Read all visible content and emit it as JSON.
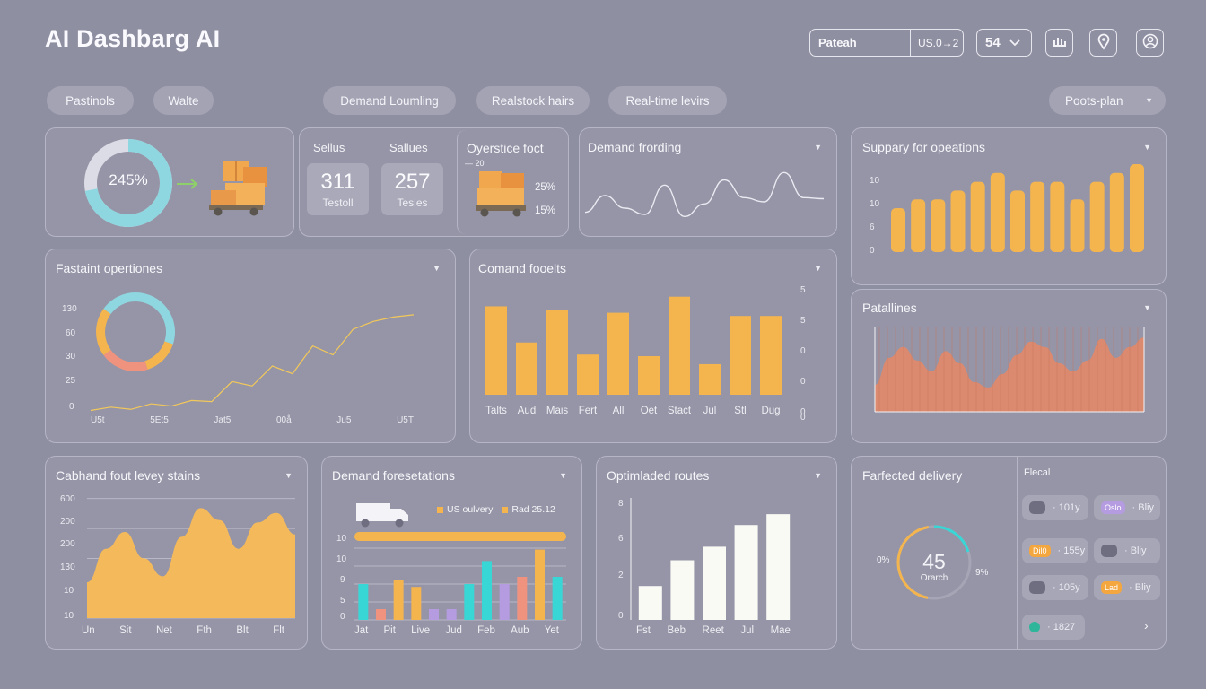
{
  "header": {
    "title": "AI Dashbarg AI",
    "search_value": "Pateah",
    "search_suffix": "US.0→2",
    "select_value": "54",
    "icons": [
      "chart-icon",
      "location-pin-icon",
      "profile-icon"
    ]
  },
  "filters": {
    "items": [
      "Pastinols",
      "Walte",
      "Demand Loumling",
      "Realstock hairs",
      "Real-time levirs"
    ],
    "dropdown": "Poots-plan"
  },
  "colors": {
    "background": "#8f8fa2",
    "accent_orange": "#f4b54f",
    "accent_cyan": "#8fd7e0",
    "accent_salmon": "#f0937e",
    "accent_teal": "#39d6d6",
    "accent_purple": "#b59be0",
    "accent_white": "#fafaf5"
  },
  "card1": {
    "donut_label": "245%",
    "donut_value": 0.72,
    "icon": "delivery-boxes-icon"
  },
  "card2": {
    "stats": [
      {
        "head": "Sellus",
        "value": "311",
        "label": "Testoll"
      },
      {
        "head": "Sallues",
        "value": "257",
        "label": "Tesles"
      }
    ]
  },
  "card3": {
    "title": "Oyerstice foct",
    "small": "— 20",
    "pct1": "25%",
    "pct2": "15%",
    "icon": "delivery-truck-boxes-icon"
  },
  "card4": {
    "title": "Demand frording",
    "line": [
      14,
      30,
      18,
      12,
      40,
      10,
      22,
      45,
      28,
      24,
      52,
      28,
      27
    ]
  },
  "card5": {
    "title": "Suppary for opeations",
    "yticks": [
      "10",
      "10",
      "6",
      "0"
    ],
    "values": [
      5,
      6,
      6,
      7,
      8,
      9,
      7,
      8,
      8,
      6,
      8,
      9,
      10
    ]
  },
  "card6": {
    "title": "Fastaint opertiones",
    "yticks": [
      "130",
      "60",
      "30",
      "25",
      "0"
    ],
    "xticks": [
      "U5t",
      "5Et5",
      "Jat5",
      "00å",
      "Ju5",
      "U5T"
    ],
    "donut": [
      0.3,
      0.15,
      0.2,
      0.2,
      0.15
    ],
    "line": [
      2,
      5,
      3,
      8,
      6,
      11,
      10,
      28,
      24,
      42,
      35,
      60,
      52,
      75,
      82,
      86,
      88
    ]
  },
  "card7": {
    "title": "Comand fooelts",
    "categories": [
      "Talts",
      "Aud",
      "Mais",
      "Fert",
      "All",
      "Oet",
      "Stact",
      "Jul",
      "Stl",
      "Dug"
    ],
    "values": [
      11,
      6.5,
      10.5,
      5,
      10.2,
      4.8,
      12.2,
      3.8,
      9.8,
      9.8
    ],
    "yticks": [
      "5",
      "5",
      "0",
      "0",
      "0",
      "0"
    ]
  },
  "card8": {
    "title": "Patallines",
    "wave": [
      20,
      40,
      48,
      38,
      30,
      45,
      36,
      22,
      18,
      28,
      42,
      52,
      48,
      36,
      30,
      38,
      54,
      40,
      48,
      55
    ]
  },
  "card9": {
    "title": "Cabhand fout levey stains",
    "yticks": [
      "600",
      "200",
      "200",
      "130",
      "10",
      "10"
    ],
    "xticks": [
      "Un",
      "Sit",
      "Net",
      "Fth",
      "Blt",
      "Flt"
    ],
    "area": [
      30,
      58,
      72,
      50,
      35,
      68,
      92,
      82,
      58,
      80,
      88,
      70
    ]
  },
  "card10": {
    "title": "Demand foresetations",
    "legend": [
      {
        "label": "US oulvery",
        "color": "#f4b54f"
      },
      {
        "label": "Rad 25.12",
        "color": "#f4b54f"
      }
    ],
    "progress": 1.0,
    "yticks": [
      "10",
      "10",
      "9",
      "5",
      "0"
    ],
    "xticks": [
      "Jat",
      "Pit",
      "Live",
      "Jud",
      "Feb",
      "Aub",
      "Yet"
    ],
    "icon": "truck-icon",
    "bars": [
      {
        "c": "#39d6d6",
        "v": 5
      },
      {
        "c": "#f0937e",
        "v": 1.5
      },
      {
        "c": "#f4b54f",
        "v": 5.5
      },
      {
        "c": "#f4b54f",
        "v": 4.6
      },
      {
        "c": "#b59be0",
        "v": 1.5
      },
      {
        "c": "#b59be0",
        "v": 1.5
      },
      {
        "c": "#39d6d6",
        "v": 5
      },
      {
        "c": "#39d6d6",
        "v": 8.2
      },
      {
        "c": "#b59be0",
        "v": 5
      },
      {
        "c": "#f0937e",
        "v": 6
      },
      {
        "c": "#f4b54f",
        "v": 9.8
      },
      {
        "c": "#39d6d6",
        "v": 6
      }
    ]
  },
  "card11": {
    "title": "Optimladed routes",
    "yticks": [
      "8",
      "6",
      "2",
      "0"
    ],
    "xticks": [
      "Fst",
      "Beb",
      "Reet",
      "Jul",
      "Mae"
    ],
    "values": [
      2.5,
      4.4,
      5.4,
      7,
      7.8
    ]
  },
  "card12": {
    "title": "Farfected delivery",
    "gauge_value": "45",
    "gauge_label": "Orarch",
    "gauge_fraction": 0.72,
    "left_pct": "0%",
    "right_pct": "9%",
    "side_title": "Flecal",
    "rows": [
      {
        "a_tag": "",
        "a_text": "· 101y",
        "b_tag": "Oslo",
        "b_text": "· Bliy"
      },
      {
        "a_tag": "Dil0",
        "a_text": "· 155y",
        "b_tag": "",
        "b_text": "· Bliy"
      },
      {
        "a_tag": "",
        "a_text": "· 105y",
        "b_tag": "Lad",
        "b_text": "· Bliy"
      }
    ],
    "last_row": "· 1827"
  }
}
